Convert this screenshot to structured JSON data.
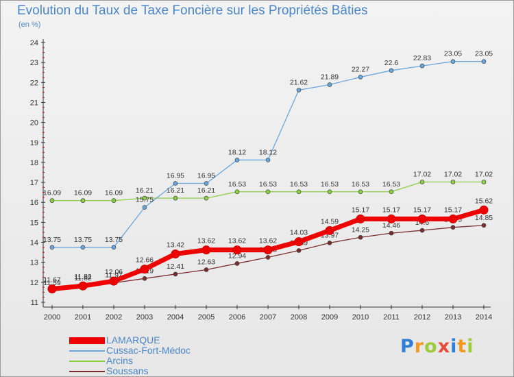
{
  "header": {
    "title": "Evolution du Taux de Taxe Foncière sur les Propriétés Bâties",
    "unit": "(en %)"
  },
  "brand": {
    "name": "Proxiti"
  },
  "chart_data": {
    "type": "line",
    "title": "Evolution du Taux de Taxe Foncière sur les Propriétés Bâties",
    "ylabel": "(en %)",
    "x": [
      2000,
      2001,
      2002,
      2003,
      2004,
      2005,
      2006,
      2007,
      2008,
      2009,
      2010,
      2011,
      2012,
      2013,
      2014
    ],
    "ylim": [
      11,
      24
    ],
    "yticks": [
      11,
      12,
      13,
      14,
      15,
      16,
      17,
      18,
      19,
      20,
      21,
      22,
      23,
      24
    ],
    "grid": false,
    "legend": "bottom-left",
    "series": [
      {
        "name": "Soussans",
        "color": "#7a2e2e",
        "values": [
          11.59,
          11.82,
          11.97,
          12.19,
          12.41,
          12.63,
          12.94,
          13.25,
          13.59,
          13.97,
          14.25,
          14.46,
          14.6,
          14.75,
          14.85
        ],
        "labels": [
          "11.59",
          "11.82",
          "11.97",
          "12.19",
          "12.41",
          "12.63",
          "12.94",
          "13.25",
          "13.59",
          "13.97",
          "14.25",
          "14.46",
          "14.6",
          "14.75",
          "14.85"
        ]
      },
      {
        "name": "Arcins",
        "color": "#8ccf44",
        "values": [
          16.09,
          16.09,
          16.09,
          16.21,
          16.21,
          16.21,
          16.53,
          16.53,
          16.53,
          16.53,
          16.53,
          16.53,
          17.02,
          17.02,
          17.02
        ],
        "labels": [
          "16.09",
          "16.09",
          "16.09",
          "16.21",
          "16.21",
          "16.21",
          "16.53",
          "16.53",
          "16.53",
          "16.53",
          "16.53",
          "16.53",
          "17.02",
          "17.02",
          "17.02"
        ]
      },
      {
        "name": "Cussac-Fort-Médoc",
        "color": "#6aa6dc",
        "values": [
          13.75,
          13.75,
          13.75,
          15.75,
          16.95,
          16.95,
          18.12,
          18.12,
          21.62,
          21.89,
          22.27,
          22.6,
          22.83,
          23.05,
          23.05
        ],
        "labels": [
          "13.75",
          "13.75",
          "13.75",
          "15.75",
          "16.95",
          "16.95",
          "18.12",
          "18.12",
          "21.62",
          "21.89",
          "22.27",
          "22.6",
          "22.83",
          "23.05",
          "23.05"
        ]
      },
      {
        "name": "LAMARQUE",
        "color": "#ee0000",
        "values": [
          11.67,
          11.82,
          12.06,
          12.66,
          13.42,
          13.62,
          13.62,
          13.62,
          14.03,
          14.59,
          15.17,
          15.17,
          15.17,
          15.17,
          15.62
        ],
        "labels": [
          "11.67",
          "11.82",
          "12.06",
          "12.66",
          "13.42",
          "13.62",
          "13.62",
          "13.62",
          "14.03",
          "14.59",
          "15.17",
          "15.17",
          "15.17",
          "15.17",
          "15.62"
        ]
      }
    ]
  }
}
